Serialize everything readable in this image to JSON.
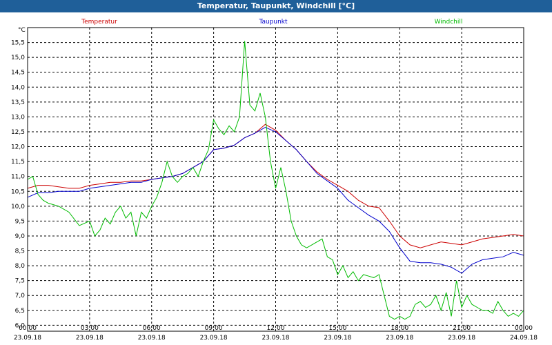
{
  "window": {
    "title": "Temperatur, Taupunkt, Windchill [°C]"
  },
  "colors": {
    "titlebar": "#1f5f99",
    "temperature": "#cc0000",
    "dewpoint": "#0000cc",
    "windchill": "#00bb00",
    "grid": "#000000"
  },
  "chart_data": {
    "type": "line",
    "title": "Temperatur, Taupunkt, Windchill [°C]",
    "ylabel": "°C",
    "xlabel": "",
    "ylim": [
      5.8,
      16.0
    ],
    "y_ticks": [
      "6,0",
      "6,5",
      "7,0",
      "7,5",
      "8,0",
      "8,5",
      "9,0",
      "9,5",
      "10,0",
      "10,5",
      "11,0",
      "11,5",
      "12,0",
      "12,5",
      "13,0",
      "13,5",
      "14,0",
      "14,5",
      "15,0",
      "15,5"
    ],
    "y_tick_values": [
      6.0,
      6.5,
      7.0,
      7.5,
      8.0,
      8.5,
      9.0,
      9.5,
      10.0,
      10.5,
      11.0,
      11.5,
      12.0,
      12.5,
      13.0,
      13.5,
      14.0,
      14.5,
      15.0,
      15.5
    ],
    "xlim": [
      0,
      24
    ],
    "x_ticks": [
      {
        "time": "00:00",
        "date": "23.09.18"
      },
      {
        "time": "03:00",
        "date": "23.09.18"
      },
      {
        "time": "06:00",
        "date": "23.09.18"
      },
      {
        "time": "09:00",
        "date": "23.09.18"
      },
      {
        "time": "12:00",
        "date": "23.09.18"
      },
      {
        "time": "15:00",
        "date": "23.09.18"
      },
      {
        "time": "18:00",
        "date": "23.09.18"
      },
      {
        "time": "21:00",
        "date": "23.09.18"
      },
      {
        "time": "00:00",
        "date": "24.09.18"
      }
    ],
    "x_tick_hours": [
      0,
      3,
      6,
      9,
      12,
      15,
      18,
      21,
      24
    ],
    "grid": true,
    "legend_placement": "top",
    "series": [
      {
        "name": "Temperatur",
        "color": "#cc0000",
        "x": [
          0,
          0.5,
          1,
          1.5,
          2,
          2.5,
          3,
          3.5,
          4,
          4.5,
          5,
          5.5,
          6,
          6.5,
          7,
          7.5,
          8,
          8.5,
          9,
          9.5,
          10,
          10.5,
          11,
          11.5,
          12,
          12.5,
          13,
          13.5,
          14,
          14.5,
          15,
          15.5,
          16,
          16.5,
          17,
          17.5,
          18,
          18.5,
          19,
          19.5,
          20,
          20.5,
          21,
          21.5,
          22,
          22.5,
          23,
          23.5,
          24
        ],
        "y": [
          10.6,
          10.7,
          10.7,
          10.65,
          10.6,
          10.6,
          10.7,
          10.75,
          10.8,
          10.8,
          10.85,
          10.85,
          10.9,
          10.95,
          11.0,
          11.1,
          11.3,
          11.5,
          11.9,
          11.95,
          12.05,
          12.3,
          12.45,
          12.75,
          12.55,
          12.2,
          11.9,
          11.5,
          11.15,
          10.9,
          10.7,
          10.5,
          10.2,
          10.0,
          9.95,
          9.5,
          9.0,
          8.7,
          8.6,
          8.7,
          8.8,
          8.75,
          8.7,
          8.8,
          8.9,
          8.95,
          9.0,
          9.05,
          9.0
        ]
      },
      {
        "name": "Taupunkt",
        "color": "#0000cc",
        "x": [
          0,
          0.5,
          1,
          1.5,
          2,
          2.5,
          3,
          3.5,
          4,
          4.5,
          5,
          5.5,
          6,
          6.5,
          7,
          7.5,
          8,
          8.5,
          9,
          9.5,
          10,
          10.5,
          11,
          11.5,
          12,
          12.5,
          13,
          13.5,
          14,
          14.5,
          15,
          15.5,
          16,
          16.5,
          17,
          17.5,
          18,
          18.5,
          19,
          19.5,
          20,
          20.5,
          21,
          21.5,
          22,
          22.5,
          23,
          23.5,
          24
        ],
        "y": [
          10.3,
          10.45,
          10.45,
          10.5,
          10.5,
          10.5,
          10.6,
          10.65,
          10.7,
          10.75,
          10.8,
          10.8,
          10.9,
          10.95,
          11.0,
          11.1,
          11.3,
          11.5,
          11.9,
          11.95,
          12.05,
          12.3,
          12.45,
          12.65,
          12.5,
          12.2,
          11.9,
          11.5,
          11.1,
          10.85,
          10.6,
          10.2,
          9.95,
          9.7,
          9.5,
          9.15,
          8.6,
          8.15,
          8.1,
          8.1,
          8.05,
          7.95,
          7.75,
          8.05,
          8.2,
          8.25,
          8.3,
          8.45,
          8.35
        ]
      },
      {
        "name": "Windchill",
        "color": "#00bb00",
        "x": [
          0,
          0.25,
          0.5,
          0.75,
          1,
          1.5,
          2,
          2.5,
          3,
          3.25,
          3.5,
          3.75,
          4,
          4.25,
          4.5,
          4.75,
          5,
          5.25,
          5.5,
          5.75,
          6,
          6.25,
          6.5,
          6.75,
          7,
          7.25,
          7.5,
          7.75,
          8,
          8.25,
          8.5,
          8.75,
          9,
          9.25,
          9.5,
          9.75,
          10,
          10.25,
          10.5,
          10.75,
          11,
          11.25,
          11.5,
          11.75,
          12,
          12.25,
          12.5,
          12.75,
          13,
          13.25,
          13.5,
          13.75,
          14,
          14.25,
          14.5,
          14.75,
          15,
          15.25,
          15.5,
          15.75,
          16,
          16.25,
          16.5,
          16.75,
          17,
          17.25,
          17.5,
          17.75,
          18,
          18.25,
          18.5,
          18.75,
          19,
          19.25,
          19.5,
          19.75,
          20,
          20.25,
          20.5,
          20.75,
          21,
          21.25,
          21.5,
          21.75,
          22,
          22.25,
          22.5,
          22.75,
          23,
          23.25,
          23.5,
          23.75,
          24
        ],
        "y": [
          10.9,
          11.0,
          10.4,
          10.2,
          10.1,
          10.0,
          9.8,
          9.35,
          9.5,
          9.0,
          9.2,
          9.6,
          9.4,
          9.8,
          10.0,
          9.6,
          9.8,
          9.0,
          9.8,
          9.6,
          10.0,
          10.3,
          10.8,
          11.5,
          11.0,
          10.8,
          11.0,
          11.1,
          11.3,
          11.0,
          11.5,
          11.9,
          12.9,
          12.6,
          12.4,
          12.7,
          12.5,
          13.0,
          15.55,
          13.4,
          13.2,
          13.8,
          13.0,
          11.5,
          10.6,
          11.3,
          10.5,
          9.5,
          9.0,
          8.7,
          8.6,
          8.7,
          8.8,
          8.9,
          8.3,
          8.2,
          7.7,
          8.0,
          7.6,
          7.8,
          7.5,
          7.7,
          7.65,
          7.6,
          7.7,
          7.0,
          6.3,
          6.2,
          6.3,
          6.2,
          6.3,
          6.7,
          6.8,
          6.6,
          6.7,
          7.0,
          6.5,
          7.1,
          6.3,
          7.5,
          6.6,
          7.0,
          6.7,
          6.6,
          6.5,
          6.5,
          6.4,
          6.8,
          6.5,
          6.3,
          6.4,
          6.3,
          6.5
        ]
      }
    ]
  }
}
